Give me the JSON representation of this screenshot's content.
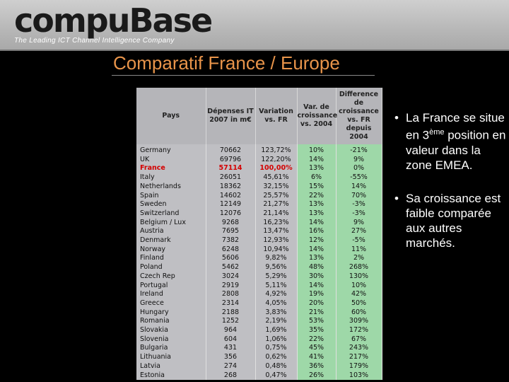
{
  "header": {
    "logo": "compuBase",
    "tagline": "The Leading ICT Channel Intelligence Company"
  },
  "slide": {
    "title": "Comparatif France / Europe"
  },
  "table": {
    "headers": {
      "pays": "Pays",
      "depenses": "Dépenses IT 2007 in m€",
      "variation": "Variation vs. FR",
      "croissance": "Var. de croissance vs. 2004",
      "difference": "Difference de croissance vs. FR depuis 2004"
    },
    "rows": [
      {
        "pays": "Germany",
        "dep": "70662",
        "var": "123,72%",
        "cr": "10%",
        "diff": "-21%"
      },
      {
        "pays": "UK",
        "dep": "69796",
        "var": "122,20%",
        "cr": "14%",
        "diff": "9%"
      },
      {
        "pays": "France",
        "dep": "57114",
        "var": "100,00%",
        "cr": "13%",
        "diff": "0%"
      },
      {
        "pays": "Italy",
        "dep": "26051",
        "var": "45,61%",
        "cr": "6%",
        "diff": "-55%"
      },
      {
        "pays": "Netherlands",
        "dep": "18362",
        "var": "32,15%",
        "cr": "15%",
        "diff": "14%"
      },
      {
        "pays": "Spain",
        "dep": "14602",
        "var": "25,57%",
        "cr": "22%",
        "diff": "70%"
      },
      {
        "pays": "Sweden",
        "dep": "12149",
        "var": "21,27%",
        "cr": "13%",
        "diff": "-3%"
      },
      {
        "pays": "Switzerland",
        "dep": "12076",
        "var": "21,14%",
        "cr": "13%",
        "diff": "-3%"
      },
      {
        "pays": "Belgium / Lux",
        "dep": "9268",
        "var": "16,23%",
        "cr": "14%",
        "diff": "9%"
      },
      {
        "pays": "Austria",
        "dep": "7695",
        "var": "13,47%",
        "cr": "16%",
        "diff": "27%"
      },
      {
        "pays": "Denmark",
        "dep": "7382",
        "var": "12,93%",
        "cr": "12%",
        "diff": "-5%"
      },
      {
        "pays": "Norway",
        "dep": "6248",
        "var": "10,94%",
        "cr": "14%",
        "diff": "11%"
      },
      {
        "pays": "Finland",
        "dep": "5606",
        "var": "9,82%",
        "cr": "13%",
        "diff": "2%"
      },
      {
        "pays": "Poland",
        "dep": "5462",
        "var": "9,56%",
        "cr": "48%",
        "diff": "268%"
      },
      {
        "pays": "Czech Rep",
        "dep": "3024",
        "var": "5,29%",
        "cr": "30%",
        "diff": "130%"
      },
      {
        "pays": "Portugal",
        "dep": "2919",
        "var": "5,11%",
        "cr": "14%",
        "diff": "10%"
      },
      {
        "pays": "Ireland",
        "dep": "2808",
        "var": "4,92%",
        "cr": "19%",
        "diff": "42%"
      },
      {
        "pays": "Greece",
        "dep": "2314",
        "var": "4,05%",
        "cr": "20%",
        "diff": "50%"
      },
      {
        "pays": "Hungary",
        "dep": "2188",
        "var": "3,83%",
        "cr": "21%",
        "diff": "60%"
      },
      {
        "pays": "Romania",
        "dep": "1252",
        "var": "2,19%",
        "cr": "53%",
        "diff": "309%"
      },
      {
        "pays": "Slovakia",
        "dep": "964",
        "var": "1,69%",
        "cr": "35%",
        "diff": "172%"
      },
      {
        "pays": "Slovenia",
        "dep": "604",
        "var": "1,06%",
        "cr": "22%",
        "diff": "67%"
      },
      {
        "pays": "Bulgaria",
        "dep": "431",
        "var": "0,75%",
        "cr": "45%",
        "diff": "243%"
      },
      {
        "pays": "Lithuania",
        "dep": "356",
        "var": "0,62%",
        "cr": "41%",
        "diff": "217%"
      },
      {
        "pays": "Latvia",
        "dep": "274",
        "var": "0,48%",
        "cr": "36%",
        "diff": "179%"
      },
      {
        "pays": "Estonia",
        "dep": "268",
        "var": "0,47%",
        "cr": "26%",
        "diff": "103%"
      }
    ]
  },
  "bullets": {
    "b1_before": "La France se situe en 3",
    "b1_sup": "ème",
    "b1_after": " position en valeur dans la zone EMEA.",
    "b2": "Sa croissance est faible comparée aux autres marchés."
  }
}
